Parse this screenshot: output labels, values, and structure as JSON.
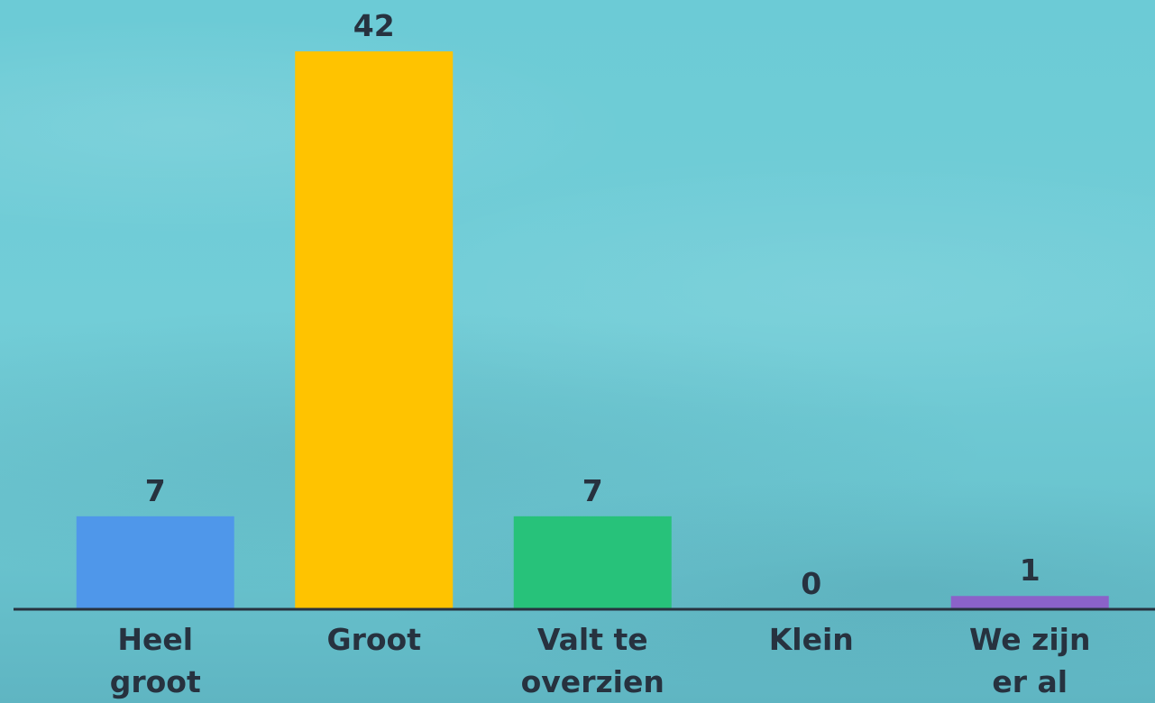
{
  "chart_data": {
    "type": "bar",
    "categories": [
      "Heel groot",
      "Groot",
      "Valt te overzien",
      "Klein",
      "We zijn er al"
    ],
    "values": [
      7,
      42,
      7,
      0,
      1
    ],
    "colors": [
      "#4f97ea",
      "#ffc300",
      "#27c27a",
      "#f26b5b",
      "#8b62c9"
    ]
  }
}
